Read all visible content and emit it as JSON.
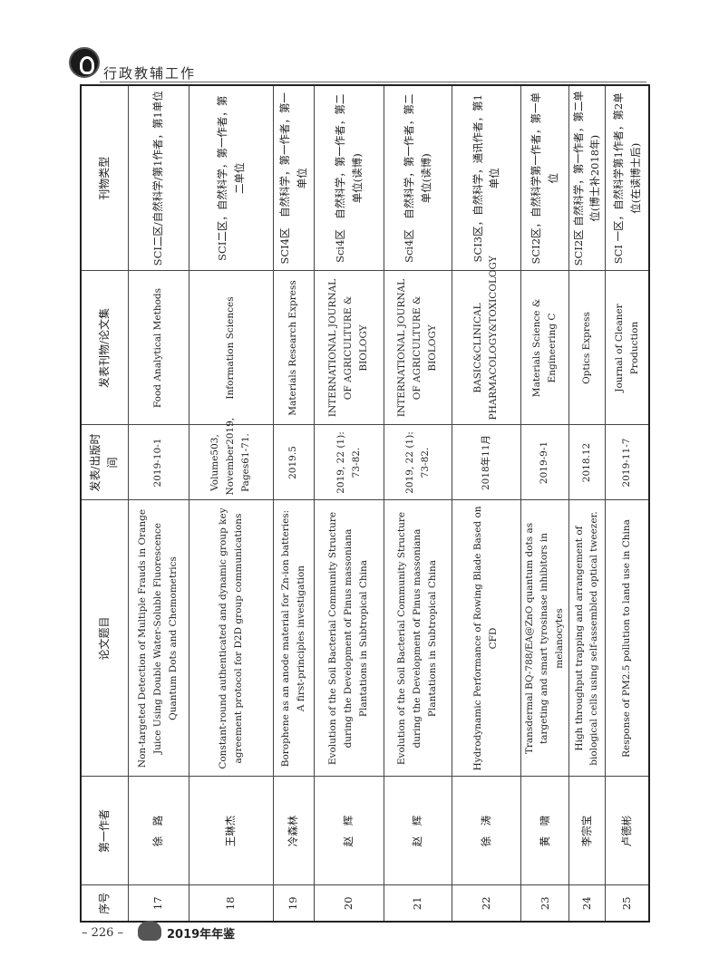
{
  "header": {
    "section_title": "行政教辅工作"
  },
  "footer": {
    "page_number": "– 226 –",
    "yearbook": "2019年年鉴"
  },
  "table": {
    "columns": [
      "序号",
      "第一作者",
      "论文题目",
      "发表/出版时间",
      "发表刊物/论文集",
      "刊物类型"
    ],
    "rows": [
      {
        "no": "17",
        "author": "徐　路",
        "title": "Non-targeted Detection of Multiple Frauds in Orange Juice Using Double Water-Soluble Fluorescence Quantum Dots and Chemometrics",
        "date": "2019-10-1",
        "journal": "Food Analytical Methods",
        "type": "SCI二区/自然科学/第1作者，第1单位"
      },
      {
        "no": "18",
        "author": "王琳杰",
        "title": "Constant-round authenticated and dynamic group key agreement protocol for D2D group communications",
        "date": "Volume503, November2019, Pages61-71.",
        "journal": "Information Sciences",
        "type": "SCI二区，自然科学，第一作者，第二单位"
      },
      {
        "no": "19",
        "author": "冷森林",
        "title": "Borophene as an anode material for Zn-ion batteries: A first-principles investigation",
        "date": "2019.5",
        "journal": "Materials Research Express",
        "type": "SCI4区　自然科学，第一作者，第一单位"
      },
      {
        "no": "20",
        "author": "赵　辉",
        "title": "Evolution of the Soil Bacterial Community Structure during the Development of Pinus massoniana Plantations in Subtropical China",
        "date": "2019, 22 (1): 73-82.",
        "journal": "INTERNATIONAL JOURNAL OF AGRICULTURE & BIOLOGY",
        "type": "Sci4区　自然科学，第一作者，第二单位(读博)"
      },
      {
        "no": "21",
        "author": "赵　辉",
        "title": "Evolution of the Soil Bacterial Community Structure during the Development of Pinus massoniana Plantations in Subtropical China",
        "date": "2019, 22 (1): 73-82.",
        "journal": "INTERNATIONAL JOURNAL OF AGRICULTURE & BIOLOGY",
        "type": "Sci4区　自然科学，第一作者，第二单位(读博)"
      },
      {
        "no": "22",
        "author": "徐　涛",
        "title": "Hydrodynamic Performance of Rowing Blade Based on CFD",
        "date": "2018年11月",
        "journal": "BASIC&CLINICAL PHARMACOLOGY&TOXICOLOGY",
        "type": "SCI3区，自然科学，通讯作者，第1单位"
      },
      {
        "no": "23",
        "author": "黄　啸",
        "title": "Transdermal BQ-788/EA@ZnO quantum dots as targeting and smart tyrosinase inhibitors in melanocytes",
        "date": "2019-9-1",
        "journal": "Materials Science & Engineering C",
        "type": "SCI2区，自然科学第一作者，第一单位"
      },
      {
        "no": "24",
        "author": "李宗宝",
        "title": "High throughput trapping and arrangement of biological cells using self-assembled optical tweezer.",
        "date": "2018.12",
        "journal": "Optics Express",
        "type": "SCI2区 自然科学，第一作者，第二单位(博士补2018年)"
      },
      {
        "no": "25",
        "author": "卢德彬",
        "title": "Response of PM2.5 pollution to land use in China",
        "date": "2019-11-7",
        "journal": "Journal of Cleaner Production",
        "type": "SCI 一区，自然科学第1作者，第2单位(在读博士后)"
      }
    ]
  }
}
